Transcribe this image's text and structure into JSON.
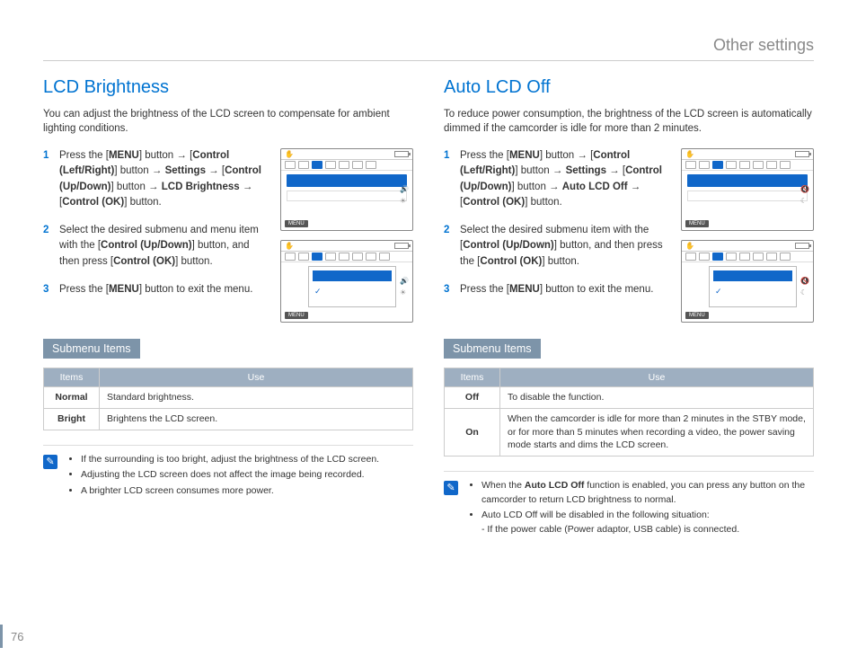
{
  "page": {
    "header": "Other settings",
    "number": "76"
  },
  "left": {
    "title": "LCD Brightness",
    "intro": "You can adjust the brightness of the LCD screen to compensate for ambient lighting conditions.",
    "steps": [
      "Press the [<b>MENU</b>] button → [<b>Control (Left/Right)</b>] button → <b>Settings</b> → [<b>Control (Up/Down)</b>] button → <b>LCD Brightness</b> → [<b>Control (OK)</b>] button.",
      "Select the desired submenu and menu item with the [<b>Control (Up/Down)</b>] button, and then press [<b>Control (OK)</b>] button.",
      "Press the [<b>MENU</b>] button to exit the menu."
    ],
    "submenu_label": "Submenu Items",
    "table": {
      "headers": [
        "Items",
        "Use"
      ],
      "rows": [
        [
          "Normal",
          "Standard brightness."
        ],
        [
          "Bright",
          "Brightens the LCD screen."
        ]
      ]
    },
    "notes": [
      "If the surrounding is too bright, adjust the brightness of the LCD screen.",
      "Adjusting the LCD screen does not affect the image being recorded.",
      "A brighter LCD screen consumes more power."
    ]
  },
  "right": {
    "title": "Auto LCD Off",
    "intro": "To reduce power consumption, the brightness of the LCD screen is automatically dimmed if the camcorder is idle for more than 2 minutes.",
    "steps": [
      "Press the [<b>MENU</b>] button → [<b>Control (Left/Right)</b>] button → <b>Settings</b> → [<b>Control (Up/Down)</b>] button → <b>Auto LCD Off</b> → [<b>Control (OK)</b>] button.",
      "Select the desired submenu item with the [<b>Control (Up/Down)</b>] button, and then press the [<b>Control (OK)</b>] button.",
      "Press the [<b>MENU</b>] button to exit the menu."
    ],
    "submenu_label": "Submenu Items",
    "table": {
      "headers": [
        "Items",
        "Use"
      ],
      "rows": [
        [
          "Off",
          "To disable the function."
        ],
        [
          "On",
          "When the camcorder is idle for more than 2 minutes in the STBY mode, or for more than 5 minutes when recording a video, the power saving mode starts and dims the LCD screen."
        ]
      ]
    },
    "notes": [
      "When the <b>Auto LCD Off</b> function is enabled, you can press any button on the camcorder to return LCD brightness to normal.",
      "Auto LCD Off will be disabled in the following situation:<br>- If the power cable (Power adaptor, USB cable) is connected."
    ]
  },
  "colors": {
    "accent": "#0073d1",
    "bar": "#1067c9",
    "header_bg": "#9eafc1",
    "label_bg": "#7d94a9"
  }
}
